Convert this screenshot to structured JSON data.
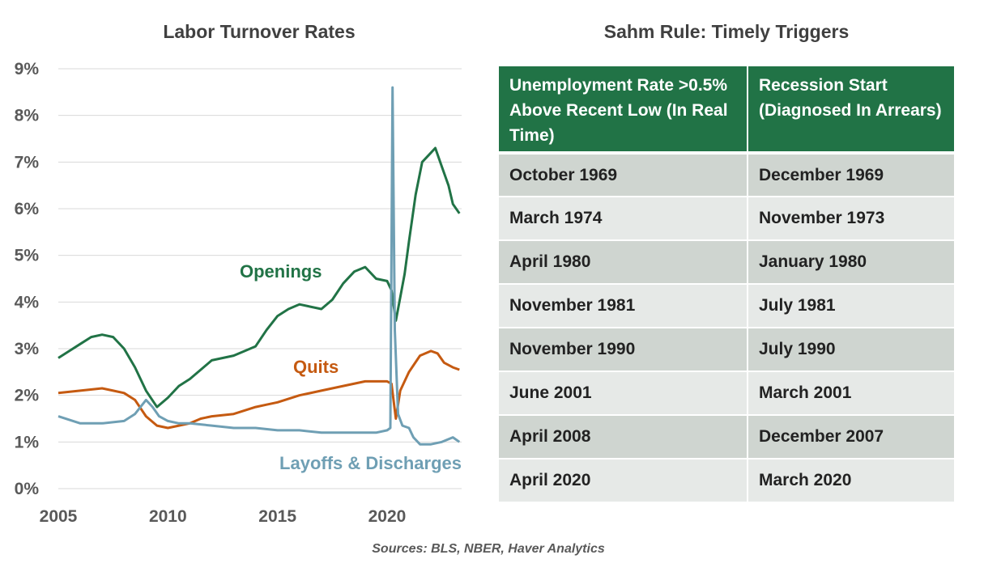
{
  "chart_data": {
    "type": "line",
    "title": "Labor Turnover Rates",
    "xlabel": "",
    "ylabel": "",
    "xlim": [
      2005,
      2023.4
    ],
    "ylim": [
      0,
      9
    ],
    "x_ticks": [
      "2005",
      "2010",
      "2015",
      "2020"
    ],
    "y_ticks": [
      "0%",
      "1%",
      "2%",
      "3%",
      "4%",
      "5%",
      "6%",
      "7%",
      "8%",
      "9%"
    ],
    "grid": "horizontal",
    "legend": "inline labels",
    "series": [
      {
        "name": "Openings",
        "color": "#217346",
        "x": [
          2005,
          2005.5,
          2006,
          2006.5,
          2007,
          2007.5,
          2008,
          2008.5,
          2009,
          2009.5,
          2010,
          2010.5,
          2011,
          2011.5,
          2012,
          2012.5,
          2013,
          2013.5,
          2014,
          2014.5,
          2015,
          2015.5,
          2016,
          2016.5,
          2017,
          2017.5,
          2018,
          2018.5,
          2019,
          2019.5,
          2020,
          2020.2,
          2020.4,
          2020.6,
          2020.8,
          2021,
          2021.3,
          2021.6,
          2022,
          2022.2,
          2022.5,
          2022.8,
          2023,
          2023.3
        ],
        "values": [
          2.8,
          2.95,
          3.1,
          3.25,
          3.3,
          3.25,
          3.0,
          2.6,
          2.1,
          1.75,
          1.95,
          2.2,
          2.35,
          2.55,
          2.75,
          2.8,
          2.85,
          2.95,
          3.05,
          3.4,
          3.7,
          3.85,
          3.95,
          3.9,
          3.85,
          4.05,
          4.4,
          4.65,
          4.75,
          4.5,
          4.45,
          4.25,
          3.6,
          4.1,
          4.6,
          5.3,
          6.3,
          7.0,
          7.2,
          7.3,
          6.9,
          6.5,
          6.1,
          5.9
        ]
      },
      {
        "name": "Quits",
        "color": "#c55a11",
        "x": [
          2005,
          2006,
          2007,
          2007.5,
          2008,
          2008.5,
          2009,
          2009.5,
          2010,
          2010.5,
          2011,
          2011.5,
          2012,
          2013,
          2014,
          2014.5,
          2015,
          2016,
          2017,
          2018,
          2019,
          2019.5,
          2020,
          2020.2,
          2020.4,
          2020.6,
          2021,
          2021.5,
          2022,
          2022.3,
          2022.6,
          2023,
          2023.3
        ],
        "values": [
          2.05,
          2.1,
          2.15,
          2.1,
          2.05,
          1.9,
          1.55,
          1.35,
          1.3,
          1.35,
          1.4,
          1.5,
          1.55,
          1.6,
          1.75,
          1.8,
          1.85,
          2.0,
          2.1,
          2.2,
          2.3,
          2.3,
          2.3,
          2.25,
          1.5,
          2.1,
          2.5,
          2.85,
          2.95,
          2.9,
          2.7,
          2.6,
          2.55
        ]
      },
      {
        "name": "Layoffs & Discharges",
        "color": "#6f9fb4",
        "x": [
          2005,
          2006,
          2007,
          2008,
          2008.5,
          2009,
          2009.3,
          2009.6,
          2010,
          2010.5,
          2011,
          2012,
          2013,
          2014,
          2015,
          2016,
          2017,
          2018,
          2019,
          2019.5,
          2020,
          2020.15,
          2020.25,
          2020.35,
          2020.5,
          2020.7,
          2021,
          2021.2,
          2021.5,
          2022,
          2022.5,
          2023,
          2023.3
        ],
        "values": [
          1.55,
          1.4,
          1.4,
          1.45,
          1.6,
          1.9,
          1.75,
          1.55,
          1.45,
          1.4,
          1.4,
          1.35,
          1.3,
          1.3,
          1.25,
          1.25,
          1.2,
          1.2,
          1.2,
          1.2,
          1.25,
          1.3,
          8.6,
          3.4,
          1.6,
          1.35,
          1.3,
          1.1,
          0.95,
          0.95,
          1.0,
          1.1,
          1.0
        ]
      }
    ]
  },
  "table": {
    "title": "Sahm Rule: Timely Triggers",
    "headers": [
      "Unemployment Rate >0.5% Above Recent Low (In Real Time)",
      "Recession Start (Diagnosed In Arrears)"
    ],
    "rows": [
      [
        "October 1969",
        "December 1969"
      ],
      [
        "March 1974",
        "November 1973"
      ],
      [
        "April 1980",
        "January 1980"
      ],
      [
        "November 1981",
        "July 1981"
      ],
      [
        "November 1990",
        "July 1990"
      ],
      [
        "June 2001",
        "March 2001"
      ],
      [
        "April 2008",
        "December 2007"
      ],
      [
        "April 2020",
        "March 2020"
      ]
    ]
  },
  "source": "Sources: BLS, NBER, Haver Analytics",
  "colors": {
    "header_bg": "#217346",
    "row_odd": "#cfd5d0",
    "row_even": "#e6e9e7"
  }
}
